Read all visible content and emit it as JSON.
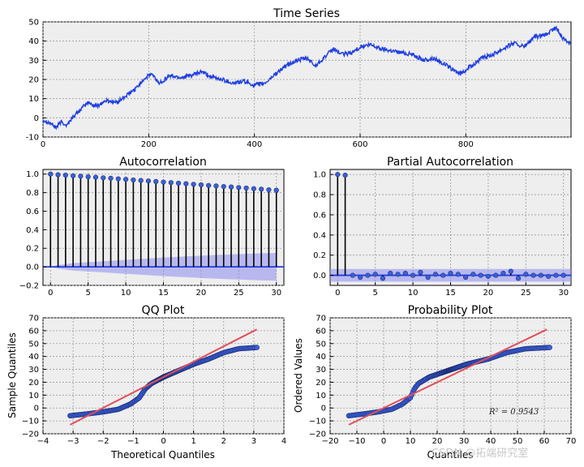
{
  "chart_data": [
    {
      "type": "line",
      "title": "Time Series",
      "xlim": [
        0,
        999
      ],
      "ylim": [
        -10,
        50
      ],
      "xticks": [
        0,
        200,
        400,
        600,
        800
      ],
      "yticks": [
        -10,
        0,
        10,
        20,
        30,
        40,
        50
      ],
      "line_color": "#1f3fe0",
      "anchors": [
        [
          0,
          -1
        ],
        [
          15,
          -3
        ],
        [
          25,
          -5
        ],
        [
          35,
          -2
        ],
        [
          45,
          -4
        ],
        [
          55,
          0
        ],
        [
          70,
          4
        ],
        [
          85,
          8
        ],
        [
          100,
          6
        ],
        [
          120,
          9
        ],
        [
          140,
          8
        ],
        [
          160,
          12
        ],
        [
          175,
          15
        ],
        [
          190,
          20
        ],
        [
          205,
          23
        ],
        [
          220,
          18
        ],
        [
          240,
          22
        ],
        [
          260,
          21
        ],
        [
          280,
          22
        ],
        [
          300,
          24
        ],
        [
          320,
          21
        ],
        [
          340,
          20
        ],
        [
          360,
          18
        ],
        [
          380,
          19
        ],
        [
          400,
          17
        ],
        [
          420,
          18
        ],
        [
          440,
          23
        ],
        [
          460,
          27
        ],
        [
          480,
          30
        ],
        [
          500,
          31
        ],
        [
          515,
          27
        ],
        [
          530,
          31
        ],
        [
          550,
          36
        ],
        [
          565,
          33
        ],
        [
          585,
          34
        ],
        [
          600,
          37
        ],
        [
          620,
          38
        ],
        [
          640,
          36
        ],
        [
          660,
          35
        ],
        [
          680,
          34
        ],
        [
          700,
          33
        ],
        [
          720,
          30
        ],
        [
          740,
          31
        ],
        [
          760,
          28
        ],
        [
          775,
          25
        ],
        [
          790,
          23
        ],
        [
          810,
          27
        ],
        [
          830,
          31
        ],
        [
          850,
          33
        ],
        [
          870,
          36
        ],
        [
          890,
          39
        ],
        [
          910,
          37
        ],
        [
          930,
          42
        ],
        [
          950,
          43
        ],
        [
          970,
          47
        ],
        [
          985,
          41
        ],
        [
          999,
          39
        ]
      ]
    },
    {
      "type": "stem",
      "title": "Autocorrelation",
      "xlim": [
        -1,
        31
      ],
      "ylim": [
        -0.2,
        1.05
      ],
      "xticks": [
        0,
        5,
        10,
        15,
        20,
        25,
        30
      ],
      "yticks": [
        -0.2,
        0.0,
        0.2,
        0.4,
        0.6,
        0.8,
        1.0
      ],
      "ytick_labels": [
        "−0.2",
        "0.0",
        "0.2",
        "0.4",
        "0.6",
        "0.8",
        "1.0"
      ],
      "lags": [
        0,
        1,
        2,
        3,
        4,
        5,
        6,
        7,
        8,
        9,
        10,
        11,
        12,
        13,
        14,
        15,
        16,
        17,
        18,
        19,
        20,
        21,
        22,
        23,
        24,
        25,
        26,
        27,
        28,
        29,
        30
      ],
      "values": [
        1.0,
        0.993,
        0.988,
        0.982,
        0.977,
        0.971,
        0.966,
        0.96,
        0.955,
        0.949,
        0.943,
        0.937,
        0.931,
        0.926,
        0.92,
        0.914,
        0.908,
        0.902,
        0.896,
        0.89,
        0.884,
        0.878,
        0.872,
        0.866,
        0.861,
        0.855,
        0.849,
        0.843,
        0.837,
        0.831,
        0.826
      ],
      "conf_band": [
        0.0,
        0.02,
        0.03,
        0.04,
        0.045,
        0.05,
        0.055,
        0.06,
        0.065,
        0.07,
        0.075,
        0.08,
        0.085,
        0.09,
        0.095,
        0.1,
        0.104,
        0.108,
        0.112,
        0.116,
        0.12,
        0.124,
        0.128,
        0.131,
        0.134,
        0.137,
        0.14,
        0.143,
        0.146,
        0.148,
        0.15
      ]
    },
    {
      "type": "stem",
      "title": "Partial Autocorrelation",
      "xlim": [
        -1,
        31
      ],
      "ylim": [
        -0.1,
        1.05
      ],
      "xticks": [
        0,
        5,
        10,
        15,
        20,
        25,
        30
      ],
      "yticks": [
        0.0,
        0.2,
        0.4,
        0.6,
        0.8,
        1.0
      ],
      "ytick_labels": [
        "0.0",
        "0.2",
        "0.4",
        "0.6",
        "0.8",
        "1.0"
      ],
      "lags": [
        0,
        1,
        2,
        3,
        4,
        5,
        6,
        7,
        8,
        9,
        10,
        11,
        12,
        13,
        14,
        15,
        16,
        17,
        18,
        19,
        20,
        21,
        22,
        23,
        24,
        25,
        26,
        27,
        28,
        29,
        30
      ],
      "values": [
        1.0,
        0.993,
        0.0,
        -0.02,
        0.0,
        0.01,
        -0.03,
        0.02,
        0.01,
        0.02,
        0.0,
        0.03,
        -0.02,
        0.01,
        0.0,
        0.02,
        0.01,
        -0.02,
        0.01,
        0.0,
        -0.01,
        0.0,
        0.02,
        0.04,
        -0.03,
        0.01,
        0.0,
        0.0,
        -0.01,
        0.0,
        0.0
      ],
      "conf_band": 0.063
    },
    {
      "type": "scatter",
      "title": "QQ Plot",
      "xlabel": "Theoretical Quantiles",
      "ylabel": "Sample Quantiles",
      "xlim": [
        -4,
        4
      ],
      "ylim": [
        -20,
        70
      ],
      "xticks": [
        -4,
        -3,
        -2,
        -1,
        0,
        1,
        2,
        3,
        4
      ],
      "xtick_labels": [
        "−4",
        "−3",
        "−2",
        "−1",
        "0",
        "1",
        "2",
        "3",
        "4"
      ],
      "yticks": [
        -20,
        -10,
        0,
        10,
        20,
        30,
        40,
        50,
        60,
        70
      ],
      "ytick_labels": [
        "−20",
        "−10",
        "0",
        "10",
        "20",
        "30",
        "40",
        "50",
        "60",
        "70"
      ],
      "reference_line": [
        [
          -3.1,
          -13
        ],
        [
          3.1,
          61
        ]
      ],
      "curve": [
        [
          -3.1,
          -6
        ],
        [
          -2.5,
          -4.5
        ],
        [
          -2.0,
          -3
        ],
        [
          -1.5,
          -1
        ],
        [
          -1.1,
          3
        ],
        [
          -0.8,
          8
        ],
        [
          -0.6,
          15
        ],
        [
          -0.4,
          19
        ],
        [
          0.0,
          24
        ],
        [
          0.5,
          29
        ],
        [
          1.0,
          34
        ],
        [
          1.5,
          38
        ],
        [
          2.0,
          43
        ],
        [
          2.5,
          46
        ],
        [
          3.1,
          47
        ]
      ]
    },
    {
      "type": "scatter",
      "title": "Probability Plot",
      "xlabel": "Quantiles",
      "ylabel": "Ordered Values",
      "xlim": [
        -20,
        70
      ],
      "ylim": [
        -20,
        70
      ],
      "xticks": [
        -20,
        -10,
        0,
        10,
        20,
        30,
        40,
        50,
        60,
        70
      ],
      "xtick_labels": [
        "−20",
        "−10",
        "0",
        "10",
        "20",
        "30",
        "40",
        "50",
        "60",
        "70"
      ],
      "yticks": [
        -20,
        -10,
        0,
        10,
        20,
        30,
        40,
        50,
        60,
        70
      ],
      "ytick_labels": [
        "−20",
        "−10",
        "0",
        "10",
        "20",
        "30",
        "40",
        "50",
        "60",
        "70"
      ],
      "annotation": "R² = 0.9543",
      "reference_line": [
        [
          -13,
          -13
        ],
        [
          61,
          61
        ]
      ],
      "curve": [
        [
          -13,
          -6
        ],
        [
          -7,
          -4.5
        ],
        [
          -2,
          -3
        ],
        [
          3,
          -1
        ],
        [
          7,
          3
        ],
        [
          10,
          8
        ],
        [
          11.5,
          15
        ],
        [
          13,
          19
        ],
        [
          17,
          24
        ],
        [
          24,
          29
        ],
        [
          31,
          34
        ],
        [
          39,
          38
        ],
        [
          46,
          43
        ],
        [
          53,
          46
        ],
        [
          62,
          47
        ]
      ]
    }
  ],
  "watermark": "CSDN @拓端研究室"
}
